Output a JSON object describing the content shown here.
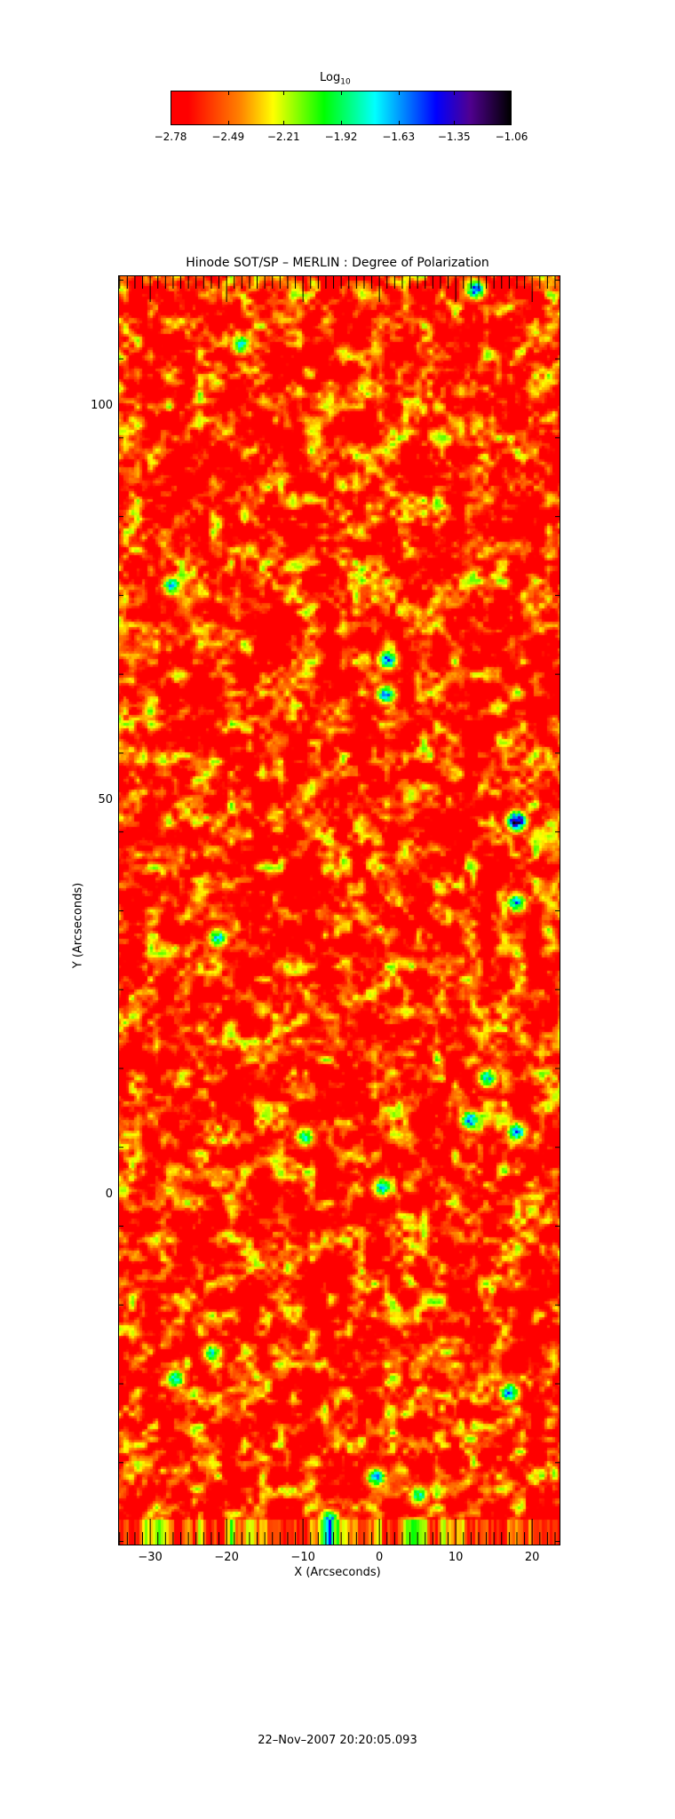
{
  "chart_data": {
    "type": "heatmap",
    "title": "Hinode SOT/SP – MERLIN : Degree of Polarization",
    "xlabel": "X (Arcseconds)",
    "ylabel": "Y (Arcseconds)",
    "xlim": [
      -34.2,
      23.7
    ],
    "ylim": [
      -44.5,
      116.6
    ],
    "xticks": [
      -30,
      -20,
      -10,
      0,
      10,
      20
    ],
    "xtick_labels": [
      "−30",
      "−20",
      "−10",
      "0",
      "10",
      "20"
    ],
    "yticks": [
      0,
      50,
      100
    ],
    "ytick_labels": [
      "0",
      "50",
      "100"
    ],
    "colorbar": {
      "label": "Log",
      "label_sub": "10",
      "range": [
        -2.78,
        -1.06
      ],
      "ticks": [
        -2.78,
        -2.49,
        -2.21,
        -1.92,
        -1.63,
        -1.35,
        -1.06
      ],
      "tick_labels": [
        "−2.78",
        "−2.49",
        "−2.21",
        "−1.92",
        "−1.63",
        "−1.35",
        "−1.06"
      ],
      "colors": [
        "#ff0000",
        "#ff0000",
        "#ff8000",
        "#ffff00",
        "#00ff00",
        "#00ffff",
        "#0000ff",
        "#500090",
        "#000000"
      ],
      "position": "top"
    },
    "grid": false
  },
  "footer": {
    "timestamp": "22–Nov–2007 20:20:05.093"
  }
}
